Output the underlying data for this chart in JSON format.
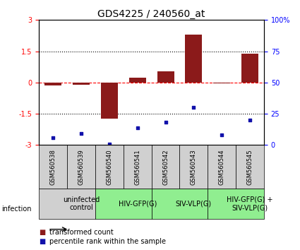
{
  "title": "GDS4225 / 240560_at",
  "samples": [
    "GSM560538",
    "GSM560539",
    "GSM560540",
    "GSM560541",
    "GSM560542",
    "GSM560543",
    "GSM560544",
    "GSM560545"
  ],
  "transformed_count": [
    -0.15,
    -0.12,
    -1.75,
    0.22,
    0.55,
    2.3,
    -0.05,
    1.4
  ],
  "percentile_rank": [
    6,
    9,
    1,
    14,
    18,
    30,
    8,
    20
  ],
  "ylim_left": [
    -3,
    3
  ],
  "ylim_right": [
    0,
    100
  ],
  "yticks_left": [
    -3,
    -1.5,
    0,
    1.5,
    3
  ],
  "yticks_right": [
    0,
    25,
    50,
    75,
    100
  ],
  "hlines_dotted": [
    -1.5,
    1.5
  ],
  "hline_dashed": 0.0,
  "bar_color": "#8B1A1A",
  "dot_color": "#1111AA",
  "bg_color": "#ffffff",
  "infection_groups": [
    {
      "label": "uninfected\ncontrol",
      "start": 0,
      "end": 2,
      "color": "#d0d0d0"
    },
    {
      "label": "HIV-GFP(G)",
      "start": 2,
      "end": 4,
      "color": "#90EE90"
    },
    {
      "label": "SIV-VLP(G)",
      "start": 4,
      "end": 6,
      "color": "#90EE90"
    },
    {
      "label": "HIV-GFP(G) +\nSIV-VLP(G)",
      "start": 6,
      "end": 8,
      "color": "#90EE90"
    }
  ],
  "sample_bg_color": "#d0d0d0",
  "legend_items": [
    {
      "color": "#8B1A1A",
      "label": "transformed count"
    },
    {
      "color": "#1111AA",
      "label": "percentile rank within the sample"
    }
  ],
  "infection_label": "infection",
  "title_fontsize": 10,
  "tick_fontsize": 7,
  "sample_fontsize": 6,
  "group_fontsize": 7,
  "legend_fontsize": 7
}
